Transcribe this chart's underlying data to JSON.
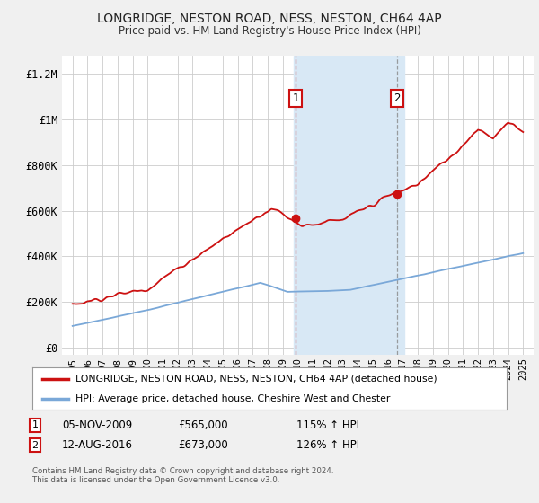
{
  "title": "LONGRIDGE, NESTON ROAD, NESS, NESTON, CH64 4AP",
  "subtitle": "Price paid vs. HM Land Registry's House Price Index (HPI)",
  "ylabel_ticks": [
    "£0",
    "£200K",
    "£400K",
    "£600K",
    "£800K",
    "£1M",
    "£1.2M"
  ],
  "ytick_values": [
    0,
    200000,
    400000,
    600000,
    800000,
    1000000,
    1200000
  ],
  "ylim": [
    -30000,
    1280000
  ],
  "xlim_start": 1994.3,
  "xlim_end": 2025.7,
  "shade_start": 2009.75,
  "shade_end": 2017.1,
  "shade_color": "#d8e8f5",
  "sale1_x": 2009.85,
  "sale1_y": 565000,
  "sale2_x": 2016.62,
  "sale2_y": 673000,
  "marker1_label": "1",
  "marker2_label": "2",
  "sale1_date": "05-NOV-2009",
  "sale1_price": "£565,000",
  "sale1_hpi": "115% ↑ HPI",
  "sale2_date": "12-AUG-2016",
  "sale2_price": "£673,000",
  "sale2_hpi": "126% ↑ HPI",
  "legend_line1": "LONGRIDGE, NESTON ROAD, NESS, NESTON, CH64 4AP (detached house)",
  "legend_line2": "HPI: Average price, detached house, Cheshire West and Chester",
  "footnote": "Contains HM Land Registry data © Crown copyright and database right 2024.\nThis data is licensed under the Open Government Licence v3.0.",
  "house_color": "#cc1111",
  "hpi_color": "#7aa8d8",
  "background_color": "#f0f0f0",
  "plot_bg_color": "#ffffff",
  "grid_color": "#cccccc",
  "xticks": [
    1995,
    1996,
    1997,
    1998,
    1999,
    2000,
    2001,
    2002,
    2003,
    2004,
    2005,
    2006,
    2007,
    2008,
    2009,
    2010,
    2011,
    2012,
    2013,
    2014,
    2015,
    2016,
    2017,
    2018,
    2019,
    2020,
    2021,
    2022,
    2023,
    2024,
    2025
  ]
}
